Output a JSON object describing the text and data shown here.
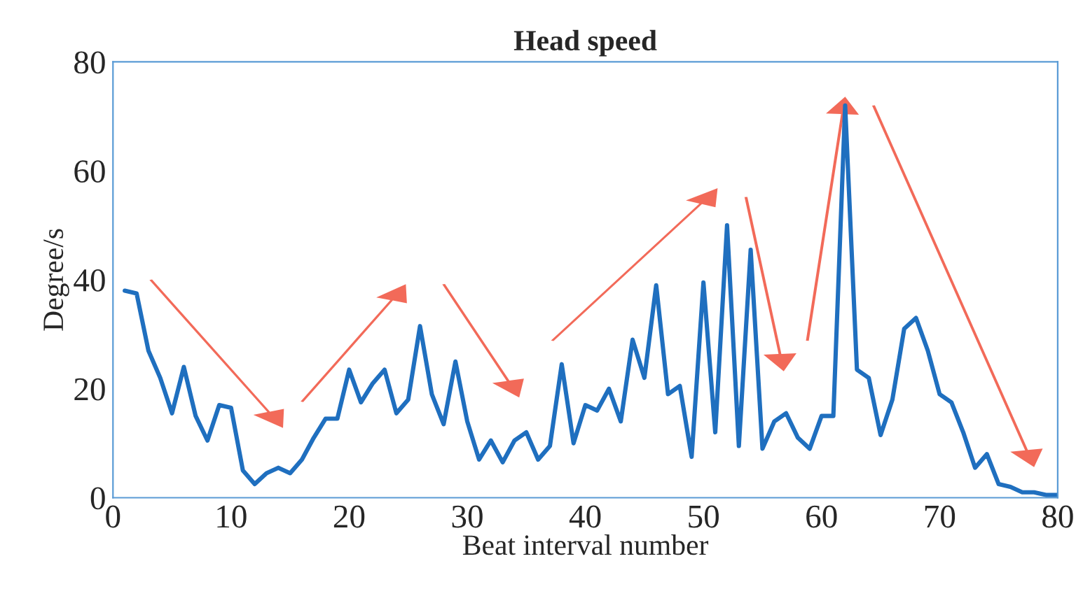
{
  "chart_data": {
    "type": "line",
    "title": "Head speed",
    "xlabel": "Beat interval number",
    "ylabel": "Degree/s",
    "x": [
      1,
      2,
      3,
      4,
      5,
      6,
      7,
      8,
      9,
      10,
      11,
      12,
      13,
      14,
      15,
      16,
      17,
      18,
      19,
      20,
      21,
      22,
      23,
      24,
      25,
      26,
      27,
      28,
      29,
      30,
      31,
      32,
      33,
      34,
      35,
      36,
      37,
      38,
      39,
      40,
      41,
      42,
      43,
      44,
      45,
      46,
      47,
      48,
      49,
      50,
      51,
      52,
      53,
      54,
      55,
      56,
      57,
      58,
      59,
      60,
      61,
      62,
      63,
      64,
      65,
      66,
      67,
      68,
      69,
      70,
      71,
      72,
      73,
      74,
      75,
      76,
      77,
      78,
      79,
      80
    ],
    "series": [
      {
        "color": "#1f6fbf",
        "values": [
          38,
          37.5,
          27,
          22,
          15.5,
          24,
          15,
          10.5,
          17,
          16.5,
          5,
          2.5,
          4.5,
          5.5,
          4.5,
          7,
          11,
          14.5,
          14.5,
          23.5,
          17.5,
          21,
          23.5,
          15.5,
          18,
          31.5,
          19,
          13.5,
          25,
          14,
          7,
          10.5,
          6.5,
          10.5,
          12,
          7,
          9.5,
          24.5,
          10,
          17,
          16,
          20,
          14,
          29,
          22,
          39,
          19,
          20.5,
          7.5,
          39.5,
          12,
          50,
          9.5,
          45.5,
          9,
          14,
          15.5,
          11,
          9,
          15,
          15,
          72,
          23.5,
          22,
          11.5,
          18,
          31,
          33,
          27,
          19,
          17.5,
          12,
          5.5,
          8,
          2.5,
          2,
          1,
          1,
          0.5,
          0.5
        ]
      }
    ],
    "xlim": [
      0,
      80
    ],
    "ylim": [
      0,
      80
    ],
    "xticks": [
      0,
      10,
      20,
      30,
      40,
      50,
      60,
      70,
      80
    ],
    "yticks": [
      0,
      20,
      40,
      60,
      80
    ],
    "grid": false,
    "legend": false,
    "marker": "none",
    "line_style": "solid"
  }
}
